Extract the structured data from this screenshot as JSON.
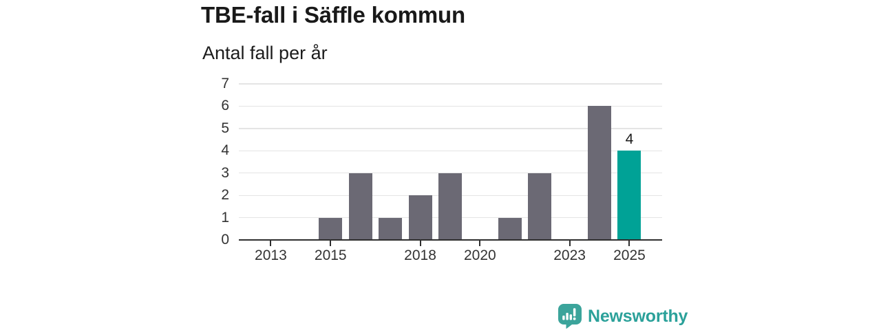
{
  "header": {
    "title": "TBE-fall i Säffle kommun",
    "subtitle": "Antal fall per år"
  },
  "chart_data": {
    "type": "bar",
    "title": "TBE-fall i Säffle kommun",
    "subtitle": "Antal fall per år",
    "categories": [
      "2012",
      "2013",
      "2014",
      "2015",
      "2016",
      "2017",
      "2018",
      "2019",
      "2020",
      "2021",
      "2022",
      "2023",
      "2024",
      "2025"
    ],
    "values": [
      0,
      0,
      0,
      1,
      3,
      1,
      2,
      3,
      0,
      1,
      3,
      0,
      6,
      4
    ],
    "xlabel": "",
    "ylabel": "Antal fall per år",
    "ylim": [
      0,
      7
    ],
    "yticks": [
      0,
      1,
      2,
      3,
      4,
      5,
      6,
      7
    ],
    "xtick_labels": [
      "2013",
      "2015",
      "2018",
      "2020",
      "2023",
      "2025"
    ],
    "highlight_category": "2025",
    "data_labels": [
      {
        "category": "2025",
        "text": "4"
      }
    ],
    "grid": true,
    "legend": false,
    "colors": {
      "bar": "#6b6974",
      "highlight": "#00a296",
      "grid": "#e4e4e4",
      "axis": "#2e2e2e",
      "tick_label": "#333333",
      "value_label": "#1a1a1a"
    }
  },
  "logo": {
    "text": "Newsworthy",
    "icon": "newsworthy-bar-chart-speech-bubble-icon",
    "color": "#2ba19a",
    "icon_color": "#3ba49b"
  }
}
